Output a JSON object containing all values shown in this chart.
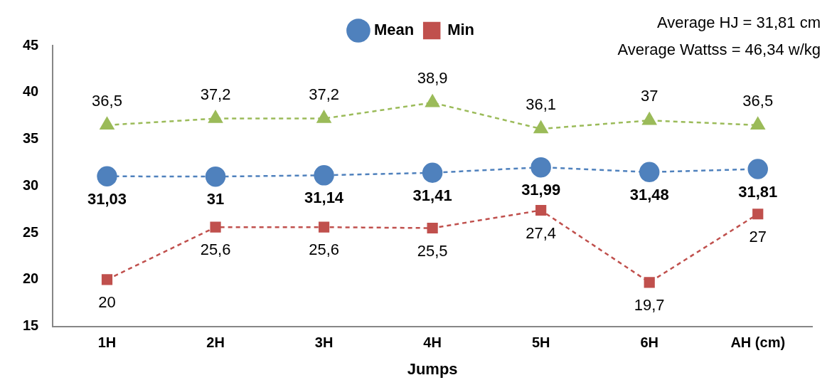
{
  "chart_data": {
    "type": "line",
    "xlabel": "Jumps",
    "categories": [
      "1H",
      "2H",
      "3H",
      "4H",
      "5H",
      "6H",
      "AH (cm)"
    ],
    "series": [
      {
        "name": "Mean",
        "color": "#4f81bd",
        "marker": "circle",
        "line_style": "dashed",
        "values": [
          31.03,
          31,
          31.14,
          31.41,
          31.99,
          31.48,
          31.81
        ],
        "value_labels": [
          "31,03",
          "31",
          "31,14",
          "31,41",
          "31,99",
          "31,48",
          "31,81"
        ]
      },
      {
        "name": "Min",
        "color": "#c0504d",
        "marker": "square",
        "line_style": "dashed",
        "values": [
          20,
          25.6,
          25.6,
          25.5,
          27.4,
          19.7,
          27
        ],
        "value_labels": [
          "20",
          "25,6",
          "25,6",
          "25,5",
          "27,4",
          "19,7",
          "27"
        ]
      },
      {
        "color": "#9bbb59",
        "marker": "triangle",
        "line_style": "dashed",
        "values": [
          36.5,
          37.2,
          37.2,
          38.9,
          36.1,
          37,
          36.5
        ],
        "value_labels": [
          "36,5",
          "37,2",
          "37,2",
          "38,9",
          "36,1",
          "37",
          "36,5"
        ]
      }
    ],
    "ylim": [
      15,
      45
    ],
    "yticks": [
      15,
      20,
      25,
      30,
      35,
      40,
      45
    ],
    "grid": false,
    "legend": "top",
    "annotations": [
      "Average HJ = 31,81 cm",
      "Average Wattss = 46,34 w/kg"
    ]
  }
}
